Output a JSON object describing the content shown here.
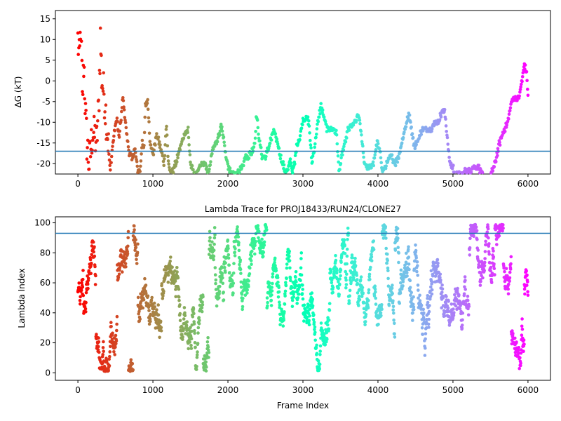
{
  "chart_data": [
    {
      "type": "scatter",
      "title": "",
      "xlabel": "",
      "ylabel": "ΔG (kT)",
      "xlim": [
        -300,
        6300
      ],
      "ylim": [
        -22.5,
        17
      ],
      "xticks": [
        0,
        1000,
        2000,
        3000,
        4000,
        5000,
        6000
      ],
      "yticks": [
        15,
        10,
        5,
        0,
        -5,
        -10,
        -15,
        -20
      ],
      "hline": -17,
      "hline_color": "#1f77b4",
      "colormap": "rainbow",
      "trace_keypoints": [
        [
          0,
          10
        ],
        [
          20,
          4
        ],
        [
          40,
          16
        ],
        [
          60,
          -5
        ],
        [
          80,
          5
        ],
        [
          100,
          -8
        ],
        [
          120,
          -15
        ],
        [
          150,
          -20
        ],
        [
          200,
          -12
        ],
        [
          250,
          -15
        ],
        [
          280,
          -5
        ],
        [
          300,
          11
        ],
        [
          320,
          0
        ],
        [
          350,
          -3
        ],
        [
          400,
          -14
        ],
        [
          430,
          -22
        ],
        [
          450,
          -18
        ],
        [
          480,
          -13
        ],
        [
          520,
          -9
        ],
        [
          550,
          -14
        ],
        [
          600,
          -4
        ],
        [
          640,
          -11
        ],
        [
          680,
          -17
        ],
        [
          720,
          -19
        ],
        [
          760,
          -16
        ],
        [
          800,
          -22
        ],
        [
          830,
          -22
        ],
        [
          860,
          -14
        ],
        [
          880,
          -17
        ],
        [
          900,
          -6
        ],
        [
          930,
          -5
        ],
        [
          960,
          -14
        ],
        [
          1000,
          -18
        ],
        [
          1050,
          -13
        ],
        [
          1100,
          -16
        ],
        [
          1150,
          -20
        ],
        [
          1180,
          -10
        ],
        [
          1200,
          -18
        ],
        [
          1230,
          -23
        ],
        [
          1280,
          -21
        ],
        [
          1340,
          -18
        ],
        [
          1380,
          -15
        ],
        [
          1420,
          -13
        ],
        [
          1470,
          -12
        ],
        [
          1500,
          -20
        ],
        [
          1560,
          -23
        ],
        [
          1610,
          -21
        ],
        [
          1640,
          -20
        ],
        [
          1700,
          -20
        ],
        [
          1740,
          -23
        ],
        [
          1790,
          -17
        ],
        [
          1840,
          -15
        ],
        [
          1880,
          -13
        ],
        [
          1910,
          -11
        ],
        [
          1940,
          -14
        ],
        [
          1990,
          -20
        ],
        [
          2060,
          -23
        ],
        [
          2140,
          -22
        ],
        [
          2200,
          -20
        ],
        [
          2240,
          -18
        ],
        [
          2280,
          -18
        ],
        [
          2320,
          -17
        ],
        [
          2360,
          -15
        ],
        [
          2380,
          -8
        ],
        [
          2410,
          -13
        ],
        [
          2450,
          -18
        ],
        [
          2510,
          -18
        ],
        [
          2560,
          -15
        ],
        [
          2610,
          -12
        ],
        [
          2660,
          -15
        ],
        [
          2700,
          -18
        ],
        [
          2760,
          -22
        ],
        [
          2800,
          -22
        ],
        [
          2830,
          -19
        ],
        [
          2860,
          -22
        ],
        [
          2890,
          -20
        ],
        [
          2920,
          -15
        ],
        [
          2960,
          -14
        ],
        [
          3000,
          -9
        ],
        [
          3050,
          -9
        ],
        [
          3080,
          -10
        ],
        [
          3120,
          -20
        ],
        [
          3170,
          -14
        ],
        [
          3200,
          -10
        ],
        [
          3240,
          -6
        ],
        [
          3280,
          -9
        ],
        [
          3330,
          -12
        ],
        [
          3380,
          -12
        ],
        [
          3420,
          -12
        ],
        [
          3450,
          -13
        ],
        [
          3480,
          -22
        ],
        [
          3520,
          -18
        ],
        [
          3560,
          -15
        ],
        [
          3600,
          -12
        ],
        [
          3640,
          -11
        ],
        [
          3700,
          -10
        ],
        [
          3740,
          -8
        ],
        [
          3780,
          -13
        ],
        [
          3820,
          -20
        ],
        [
          3880,
          -21
        ],
        [
          3940,
          -20
        ],
        [
          3990,
          -15
        ],
        [
          4020,
          -16
        ],
        [
          4060,
          -22
        ],
        [
          4120,
          -20
        ],
        [
          4180,
          -18
        ],
        [
          4230,
          -20
        ],
        [
          4280,
          -18
        ],
        [
          4330,
          -14
        ],
        [
          4380,
          -10
        ],
        [
          4420,
          -8
        ],
        [
          4450,
          -12
        ],
        [
          4490,
          -16
        ],
        [
          4540,
          -14
        ],
        [
          4580,
          -12
        ],
        [
          4640,
          -12
        ],
        [
          4700,
          -12
        ],
        [
          4760,
          -10
        ],
        [
          4800,
          -10
        ],
        [
          4840,
          -8
        ],
        [
          4890,
          -7
        ],
        [
          4930,
          -15
        ],
        [
          4960,
          -20
        ],
        [
          5000,
          -21
        ],
        [
          5040,
          -23
        ],
        [
          5280,
          -21
        ],
        [
          5350,
          -21
        ],
        [
          5400,
          -23
        ],
        [
          5500,
          -23
        ],
        [
          5560,
          -20
        ],
        [
          5620,
          -15
        ],
        [
          5680,
          -12
        ],
        [
          5730,
          -10
        ],
        [
          5780,
          -5
        ],
        [
          5830,
          -4
        ],
        [
          5880,
          -4
        ],
        [
          5920,
          0
        ],
        [
          5950,
          4
        ],
        [
          5980,
          2
        ],
        [
          6000,
          -3
        ]
      ]
    },
    {
      "type": "scatter",
      "title": "Lambda Trace for PROJ18433/RUN24/CLONE27",
      "xlabel": "Frame Index",
      "ylabel": "Lambda Index",
      "xlim": [
        -300,
        6300
      ],
      "ylim": [
        -5,
        104
      ],
      "xticks": [
        0,
        1000,
        2000,
        3000,
        4000,
        5000,
        6000
      ],
      "yticks": [
        100,
        80,
        60,
        40,
        20,
        0
      ],
      "hline": 93,
      "hline_color": "#1f77b4",
      "colormap": "rainbow",
      "n_frames": 6000
    }
  ]
}
